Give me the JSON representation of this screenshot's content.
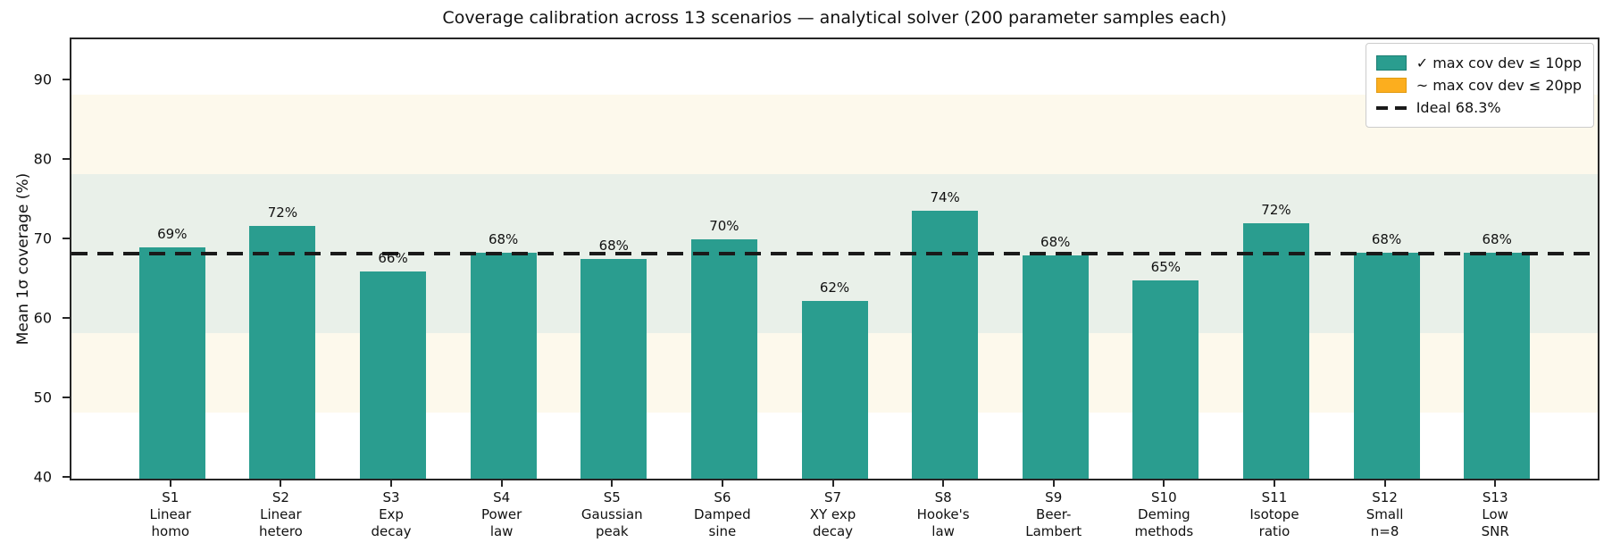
{
  "chart_data": {
    "type": "bar",
    "title": "Coverage calibration across 13 scenarios — analytical solver (200 parameter samples each)",
    "ylabel": "Mean 1σ coverage  (%)",
    "xlabel": "",
    "ylim": [
      40,
      95.3
    ],
    "yticks": [
      40,
      50,
      60,
      70,
      80,
      90
    ],
    "grid": false,
    "categories": [
      [
        "S1",
        "Linear",
        "homo"
      ],
      [
        "S2",
        "Linear",
        "hetero"
      ],
      [
        "S3",
        "Exp",
        "decay"
      ],
      [
        "S4",
        "Power",
        "law"
      ],
      [
        "S5",
        "Gaussian",
        "peak"
      ],
      [
        "S6",
        "Damped",
        "sine"
      ],
      [
        "S7",
        "XY exp",
        "decay"
      ],
      [
        "S8",
        "Hooke's",
        "law"
      ],
      [
        "S9",
        "Beer-",
        "Lambert"
      ],
      [
        "S10",
        "Deming",
        "methods"
      ],
      [
        "S11",
        "Isotope",
        "ratio"
      ],
      [
        "S12",
        "Small",
        "n=8"
      ],
      [
        "S13",
        "Low",
        "SNR"
      ]
    ],
    "values": [
      69.1,
      71.8,
      66.1,
      68.4,
      67.7,
      70.1,
      62.4,
      73.7,
      68.1,
      65.0,
      72.1,
      68.4,
      68.4
    ],
    "bar_labels": [
      "69%",
      "72%",
      "66%",
      "68%",
      "68%",
      "70%",
      "62%",
      "74%",
      "68%",
      "65%",
      "72%",
      "68%",
      "68%"
    ],
    "reference_line": {
      "value": 68.3,
      "label": "Ideal 68.3%",
      "style": "dashed"
    },
    "bands": [
      {
        "from": 48.3,
        "to": 88.3,
        "color_key": "band_outer"
      },
      {
        "from": 58.3,
        "to": 78.3,
        "color_key": "band_inner"
      }
    ],
    "legend": {
      "position": "upper right",
      "items": [
        {
          "type": "patch",
          "color_key": "pass",
          "label": "✓ max cov dev ≤ 10pp"
        },
        {
          "type": "patch",
          "color_key": "warn",
          "label": "~ max cov dev ≤ 20pp"
        },
        {
          "type": "dash",
          "color_key": "ideal",
          "label": "Ideal 68.3%"
        }
      ]
    }
  },
  "colors": {
    "pass": "#2a9d8f",
    "pass_edge": "#1c7e73",
    "warn": "#fcae1e",
    "warn_edge": "#e09a12",
    "ideal": "#1a1a1a",
    "band_inner": "#e9f0e9",
    "band_outer": "#fdf9ec"
  }
}
